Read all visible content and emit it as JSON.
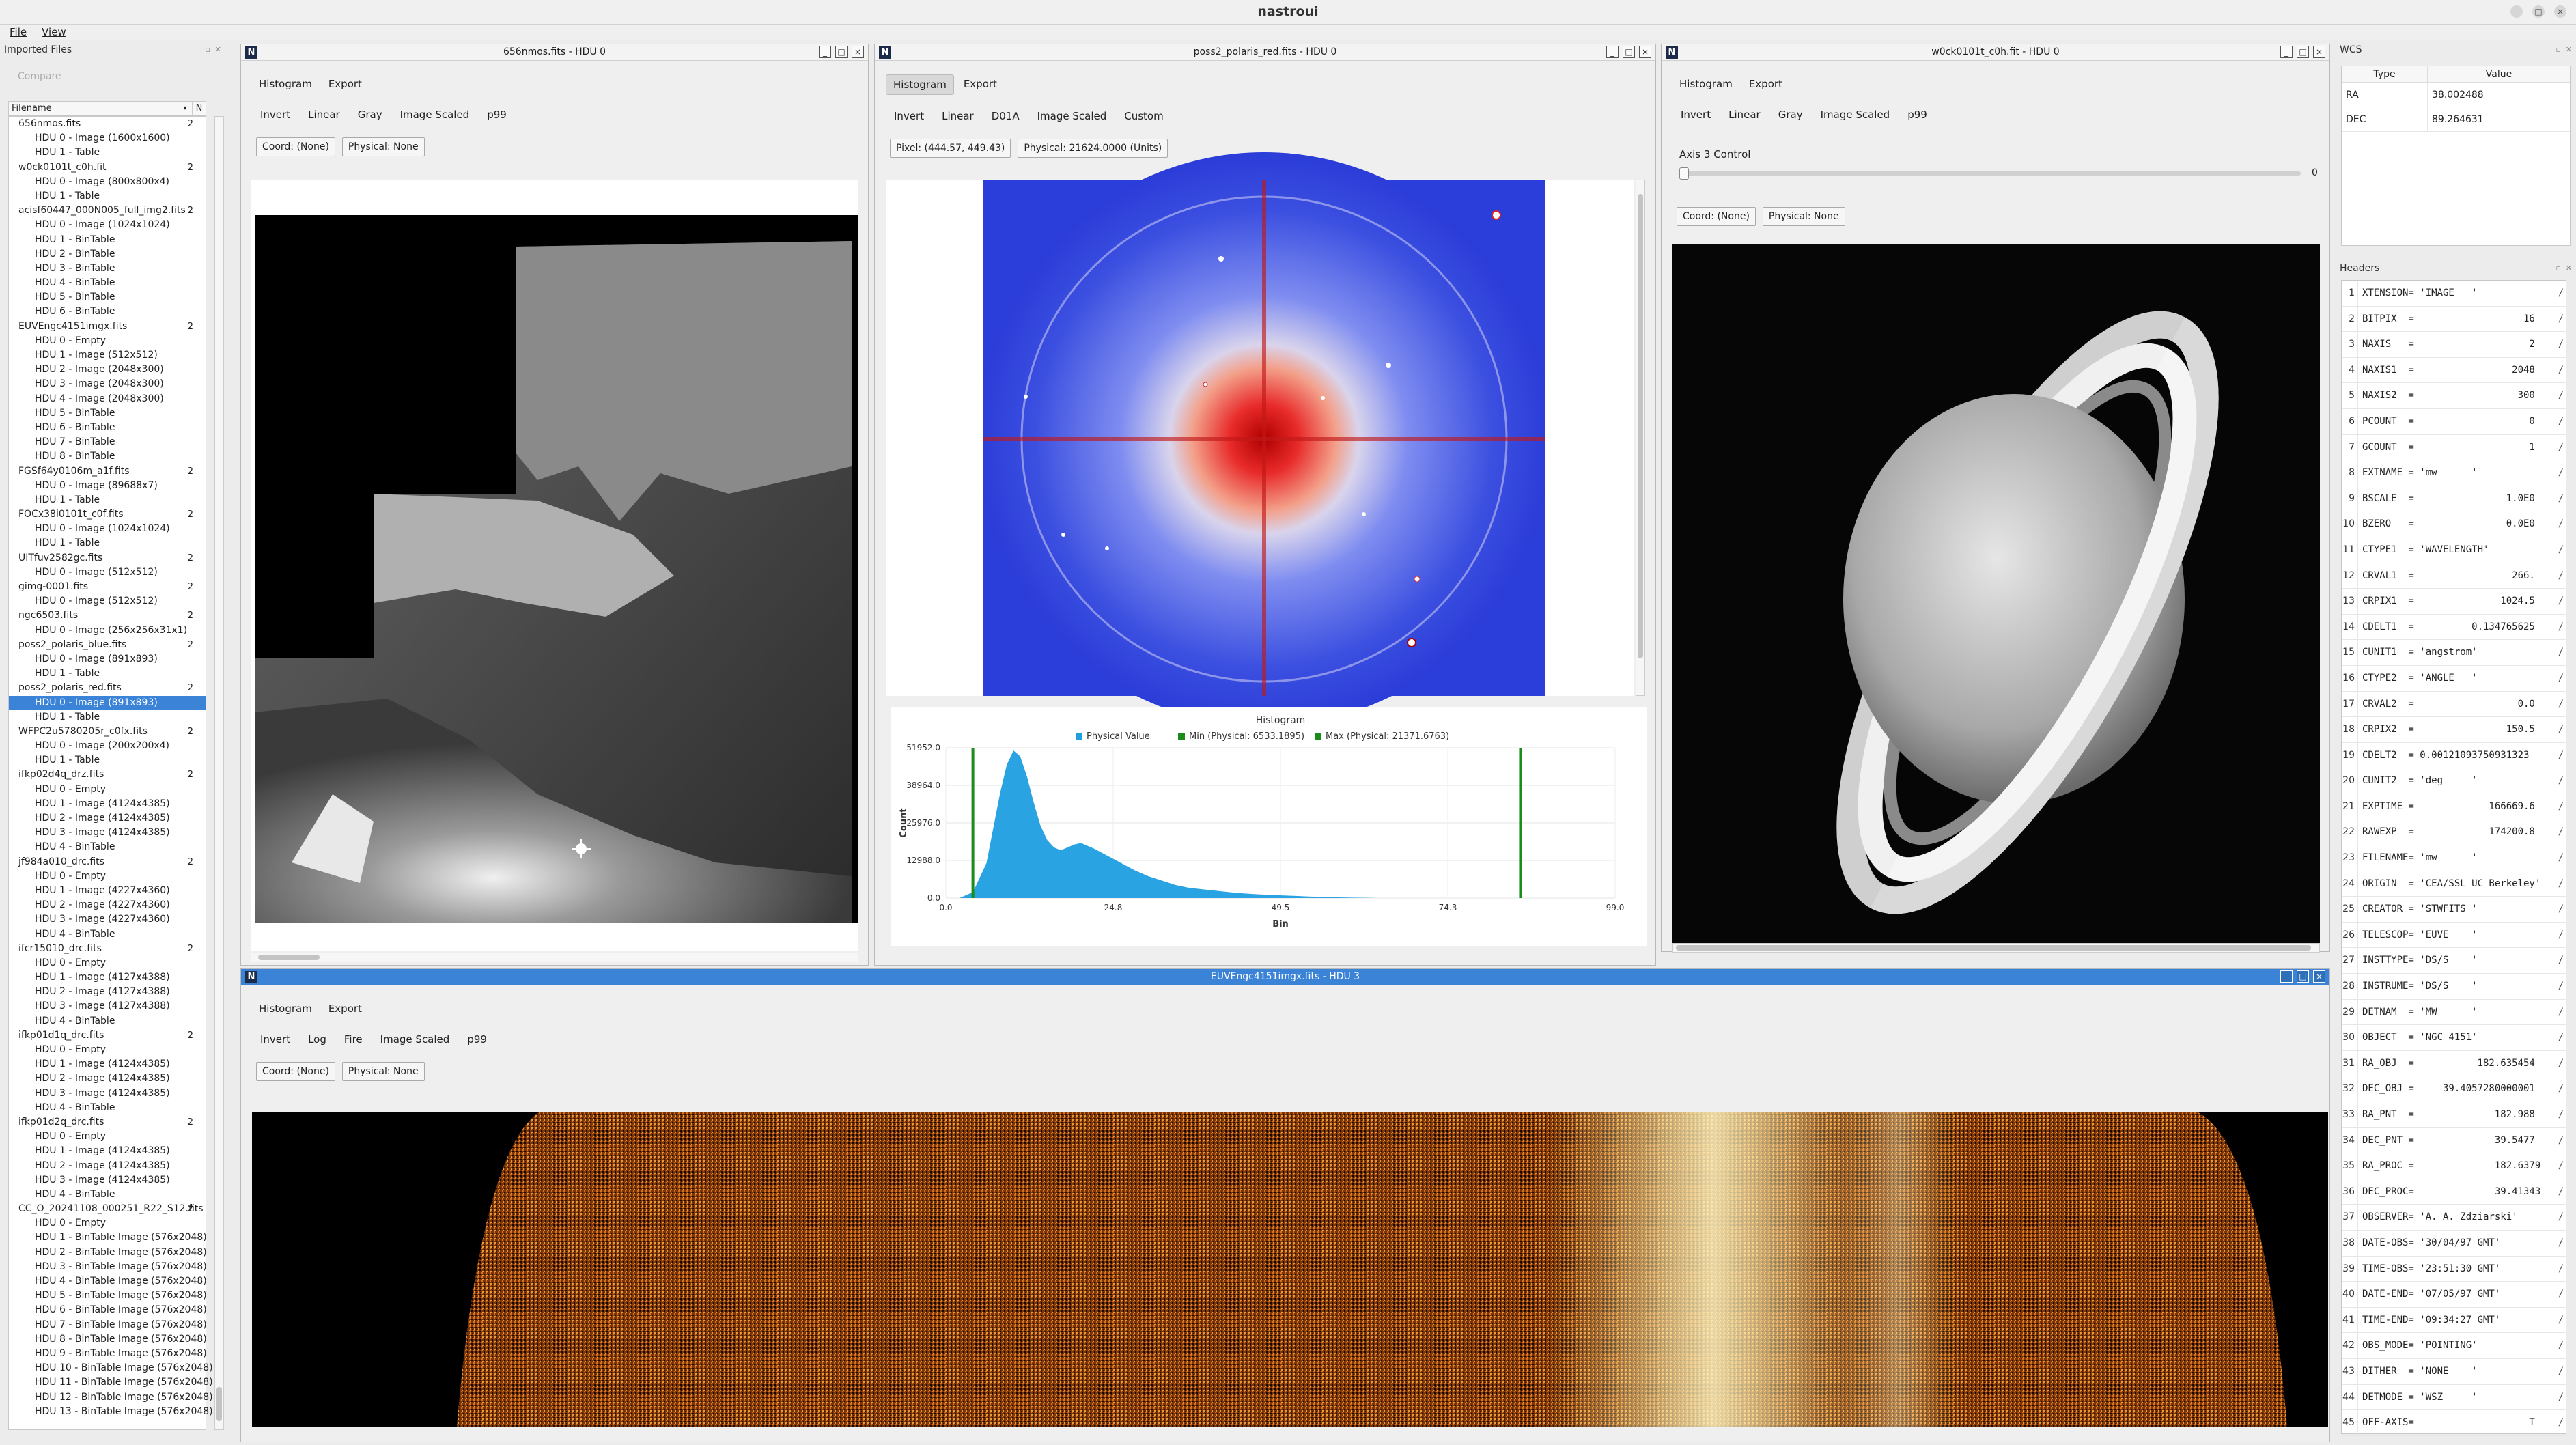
{
  "app": {
    "title": "nastroui",
    "menu": [
      "File",
      "View"
    ]
  },
  "imported": {
    "title": "Imported Files",
    "compare_label": "Compare",
    "col_filename": "Filename",
    "col_n": "N",
    "rows": [
      {
        "k": "f",
        "label": "656nmos.fits",
        "n": "2"
      },
      {
        "k": "h",
        "label": "HDU 0 - Image (1600x1600)"
      },
      {
        "k": "h",
        "label": "HDU 1 - Table"
      },
      {
        "k": "f",
        "label": "w0ck0101t_c0h.fit",
        "n": "2"
      },
      {
        "k": "h",
        "label": "HDU 0 - Image (800x800x4)"
      },
      {
        "k": "h",
        "label": "HDU 1 - Table"
      },
      {
        "k": "f",
        "label": "acisf60447_000N005_full_img2.fits",
        "n": "2"
      },
      {
        "k": "h",
        "label": "HDU 0 - Image (1024x1024)"
      },
      {
        "k": "h",
        "label": "HDU 1 - BinTable"
      },
      {
        "k": "h",
        "label": "HDU 2 - BinTable"
      },
      {
        "k": "h",
        "label": "HDU 3 - BinTable"
      },
      {
        "k": "h",
        "label": "HDU 4 - BinTable"
      },
      {
        "k": "h",
        "label": "HDU 5 - BinTable"
      },
      {
        "k": "h",
        "label": "HDU 6 - BinTable"
      },
      {
        "k": "f",
        "label": "EUVEngc4151imgx.fits",
        "n": "2"
      },
      {
        "k": "h",
        "label": "HDU 0 - Empty"
      },
      {
        "k": "h",
        "label": "HDU 1 - Image (512x512)"
      },
      {
        "k": "h",
        "label": "HDU 2 - Image (2048x300)"
      },
      {
        "k": "h",
        "label": "HDU 3 - Image (2048x300)"
      },
      {
        "k": "h",
        "label": "HDU 4 - Image (2048x300)"
      },
      {
        "k": "h",
        "label": "HDU 5 - BinTable"
      },
      {
        "k": "h",
        "label": "HDU 6 - BinTable"
      },
      {
        "k": "h",
        "label": "HDU 7 - BinTable"
      },
      {
        "k": "h",
        "label": "HDU 8 - BinTable"
      },
      {
        "k": "f",
        "label": "FGSf64y0106m_a1f.fits",
        "n": "2"
      },
      {
        "k": "h",
        "label": "HDU 0 - Image (89688x7)"
      },
      {
        "k": "h",
        "label": "HDU 1 - Table"
      },
      {
        "k": "f",
        "label": "FOCx38i0101t_c0f.fits",
        "n": "2"
      },
      {
        "k": "h",
        "label": "HDU 0 - Image (1024x1024)"
      },
      {
        "k": "h",
        "label": "HDU 1 - Table"
      },
      {
        "k": "f",
        "label": "UITfuv2582gc.fits",
        "n": "2"
      },
      {
        "k": "h",
        "label": "HDU 0 - Image (512x512)"
      },
      {
        "k": "f",
        "label": "gimg-0001.fits",
        "n": "2"
      },
      {
        "k": "h",
        "label": "HDU 0 - Image (512x512)"
      },
      {
        "k": "f",
        "label": "ngc6503.fits",
        "n": "2"
      },
      {
        "k": "h",
        "label": "HDU 0 - Image (256x256x31x1)"
      },
      {
        "k": "f",
        "label": "poss2_polaris_blue.fits",
        "n": "2"
      },
      {
        "k": "h",
        "label": "HDU 0 - Image (891x893)"
      },
      {
        "k": "h",
        "label": "HDU 1 - Table"
      },
      {
        "k": "f",
        "label": "poss2_polaris_red.fits",
        "n": "2"
      },
      {
        "k": "h",
        "label": "HDU 0 - Image (891x893)",
        "sel": true
      },
      {
        "k": "h",
        "label": "HDU 1 - Table"
      },
      {
        "k": "f",
        "label": "WFPC2u5780205r_c0fx.fits",
        "n": "2"
      },
      {
        "k": "h",
        "label": "HDU 0 - Image (200x200x4)"
      },
      {
        "k": "h",
        "label": "HDU 1 - Table"
      },
      {
        "k": "f",
        "label": "ifkp02d4q_drz.fits",
        "n": "2"
      },
      {
        "k": "h",
        "label": "HDU 0 - Empty"
      },
      {
        "k": "h",
        "label": "HDU 1 - Image (4124x4385)"
      },
      {
        "k": "h",
        "label": "HDU 2 - Image (4124x4385)"
      },
      {
        "k": "h",
        "label": "HDU 3 - Image (4124x4385)"
      },
      {
        "k": "h",
        "label": "HDU 4 - BinTable"
      },
      {
        "k": "f",
        "label": "jf984a010_drc.fits",
        "n": "2"
      },
      {
        "k": "h",
        "label": "HDU 0 - Empty"
      },
      {
        "k": "h",
        "label": "HDU 1 - Image (4227x4360)"
      },
      {
        "k": "h",
        "label": "HDU 2 - Image (4227x4360)"
      },
      {
        "k": "h",
        "label": "HDU 3 - Image (4227x4360)"
      },
      {
        "k": "h",
        "label": "HDU 4 - BinTable"
      },
      {
        "k": "f",
        "label": "ifcr15010_drc.fits",
        "n": "2"
      },
      {
        "k": "h",
        "label": "HDU 0 - Empty"
      },
      {
        "k": "h",
        "label": "HDU 1 - Image (4127x4388)"
      },
      {
        "k": "h",
        "label": "HDU 2 - Image (4127x4388)"
      },
      {
        "k": "h",
        "label": "HDU 3 - Image (4127x4388)"
      },
      {
        "k": "h",
        "label": "HDU 4 - BinTable"
      },
      {
        "k": "f",
        "label": "ifkp01d1q_drc.fits",
        "n": "2"
      },
      {
        "k": "h",
        "label": "HDU 0 - Empty"
      },
      {
        "k": "h",
        "label": "HDU 1 - Image (4124x4385)"
      },
      {
        "k": "h",
        "label": "HDU 2 - Image (4124x4385)"
      },
      {
        "k": "h",
        "label": "HDU 3 - Image (4124x4385)"
      },
      {
        "k": "h",
        "label": "HDU 4 - BinTable"
      },
      {
        "k": "f",
        "label": "ifkp01d2q_drc.fits",
        "n": "2"
      },
      {
        "k": "h",
        "label": "HDU 0 - Empty"
      },
      {
        "k": "h",
        "label": "HDU 1 - Image (4124x4385)"
      },
      {
        "k": "h",
        "label": "HDU 2 - Image (4124x4385)"
      },
      {
        "k": "h",
        "label": "HDU 3 - Image (4124x4385)"
      },
      {
        "k": "h",
        "label": "HDU 4 - BinTable"
      },
      {
        "k": "f",
        "label": "CC_O_20241108_000251_R22_S12.fits",
        "n": "2"
      },
      {
        "k": "h",
        "label": "HDU 0 - Empty"
      },
      {
        "k": "h",
        "label": "HDU 1 - BinTable Image (576x2048)"
      },
      {
        "k": "h",
        "label": "HDU 2 - BinTable Image (576x2048)"
      },
      {
        "k": "h",
        "label": "HDU 3 - BinTable Image (576x2048)"
      },
      {
        "k": "h",
        "label": "HDU 4 - BinTable Image (576x2048)"
      },
      {
        "k": "h",
        "label": "HDU 5 - BinTable Image (576x2048)"
      },
      {
        "k": "h",
        "label": "HDU 6 - BinTable Image (576x2048)"
      },
      {
        "k": "h",
        "label": "HDU 7 - BinTable Image (576x2048)"
      },
      {
        "k": "h",
        "label": "HDU 8 - BinTable Image (576x2048)"
      },
      {
        "k": "h",
        "label": "HDU 9 - BinTable Image (576x2048)"
      },
      {
        "k": "h",
        "label": "HDU 10 - BinTable Image (576x2048)"
      },
      {
        "k": "h",
        "label": "HDU 11 - BinTable Image (576x2048)"
      },
      {
        "k": "h",
        "label": "HDU 12 - BinTable Image (576x2048)"
      },
      {
        "k": "h",
        "label": "HDU 13 - BinTable Image (576x2048)"
      }
    ]
  },
  "win1": {
    "title": "656nmos.fits - HDU 0",
    "tabs": [
      "Histogram",
      "Export"
    ],
    "tools": [
      "Invert",
      "Linear",
      "Gray",
      "Image Scaled",
      "p99"
    ],
    "coord": "Coord: (None)",
    "physical": "Physical: None"
  },
  "win2": {
    "title": "poss2_polaris_red.fits - HDU 0",
    "tabs": [
      "Histogram",
      "Export"
    ],
    "tools": [
      "Invert",
      "Linear",
      "D01A",
      "Image Scaled",
      "Custom"
    ],
    "pixel": "Pixel: (444.57, 449.43)",
    "physical": "Physical: 21624.0000 (Units)"
  },
  "win3": {
    "title": "w0ck0101t_c0h.fit - HDU 0",
    "tabs": [
      "Histogram",
      "Export"
    ],
    "tools": [
      "Invert",
      "Linear",
      "Gray",
      "Image Scaled",
      "p99"
    ],
    "axis_label": "Axis 3 Control",
    "axis_value": "0",
    "coord": "Coord: (None)",
    "physical": "Physical: None"
  },
  "win4": {
    "title": "EUVEngc4151imgx.fits - HDU 3",
    "tabs": [
      "Histogram",
      "Export"
    ],
    "tools": [
      "Invert",
      "Log",
      "Fire",
      "Image Scaled",
      "p99"
    ],
    "coord": "Coord: (None)",
    "physical": "Physical: None"
  },
  "colors": {
    "accent": "#3a83d7",
    "histogram_fill": "#1f9ee0",
    "min_max": "#1a8c1a"
  },
  "chart_data": {
    "type": "area",
    "title": "Histogram",
    "xlabel": "Bin",
    "ylabel": "Count",
    "legend": [
      "Physical Value",
      "Min (Physical: 6533.1895)",
      "Max (Physical: 21371.6763)"
    ],
    "legend_position": "top",
    "xlim": [
      0,
      99
    ],
    "ylim": [
      0,
      51952
    ],
    "xticks": [
      "0.0",
      "24.8",
      "49.5",
      "74.3",
      "99.0"
    ],
    "yticks": [
      "0.0",
      "12988.0",
      "25976.0",
      "38964.0",
      "51952.0"
    ],
    "min_line_x": 4,
    "max_line_x": 85,
    "x": [
      0,
      2,
      4,
      6,
      7,
      8,
      9,
      10,
      11,
      12,
      13,
      14,
      15,
      16,
      17,
      18,
      19,
      20,
      22,
      24,
      26,
      28,
      30,
      32,
      34,
      36,
      38,
      40,
      42,
      44,
      46,
      48,
      50,
      52,
      54,
      56,
      58,
      60,
      62,
      64,
      99
    ],
    "y": [
      0,
      0,
      2000,
      12000,
      24000,
      36000,
      46000,
      51000,
      49000,
      42000,
      33000,
      25000,
      20000,
      17500,
      16500,
      17500,
      18500,
      19000,
      17000,
      14500,
      12000,
      9500,
      7500,
      6000,
      4500,
      3500,
      3000,
      2500,
      2000,
      1600,
      1300,
      1100,
      900,
      700,
      500,
      400,
      250,
      150,
      80,
      0,
      0
    ],
    "grid": true
  },
  "wcs": {
    "title": "WCS",
    "cols": [
      "Type",
      "Value"
    ],
    "rows": [
      {
        "type": "RA",
        "value": "38.002488"
      },
      {
        "type": "DEC",
        "value": "89.264631"
      }
    ]
  },
  "headers": {
    "title": "Headers",
    "rows": [
      "XTENSION= 'IMAGE   '",
      "BITPIX  =                   16",
      "NAXIS   =                    2",
      "NAXIS1  =                 2048",
      "NAXIS2  =                  300",
      "PCOUNT  =                    0",
      "GCOUNT  =                    1",
      "EXTNAME = 'mw      '",
      "BSCALE  =                1.0E0",
      "BZERO   =                0.0E0",
      "CTYPE1  = 'WAVELENGTH'",
      "CRVAL1  =                 266.",
      "CRPIX1  =               1024.5",
      "CDELT1  =          0.134765625",
      "CUNIT1  = 'angstrom'",
      "CTYPE2  = 'ANGLE   '",
      "CRVAL2  =                  0.0",
      "CRPIX2  =                150.5",
      "CDELT2  = 0.00121093750931323",
      "CUNIT2  = 'deg     '",
      "EXPTIME =             166669.6",
      "RAWEXP  =             174200.8",
      "FILENAME= 'mw      '",
      "ORIGIN  = 'CEA/SSL UC Berkeley'",
      "CREATOR = 'STWFITS '",
      "TELESCOP= 'EUVE    '",
      "INSTTYPE= 'DS/S    '",
      "INSTRUME= 'DS/S    '",
      "DETNAM  = 'MW      '",
      "OBJECT  = 'NGC 4151'",
      "RA_OBJ  =           182.635454",
      "DEC_OBJ =     39.4057280000001",
      "RA_PNT  =              182.988",
      "DEC_PNT =              39.5477",
      "RA_PROC =              182.6379",
      "DEC_PROC=              39.41343",
      "OBSERVER= 'A. A. Zdziarski'",
      "DATE-OBS= '30/04/97 GMT'",
      "TIME-OBS= '23:51:30 GMT'",
      "DATE-END= '07/05/97 GMT'",
      "TIME-END= '09:34:27 GMT'",
      "OBS_MODE= 'POINTING'",
      "DITHER  = 'NONE    '",
      "DETMODE = 'WSZ     '",
      "OFF-AXIS=                    T"
    ]
  }
}
